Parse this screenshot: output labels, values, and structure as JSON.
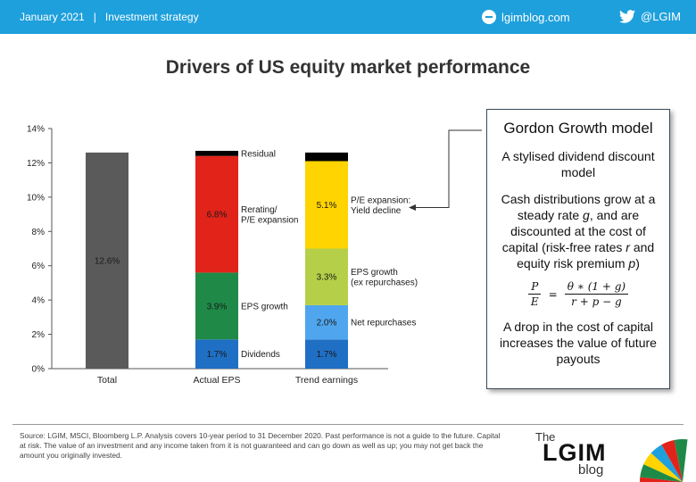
{
  "header": {
    "date": "January 2021",
    "separator": "|",
    "section": "Investment strategy",
    "site": "lgimblog.com",
    "twitter": "@LGIM",
    "site_icon": "globe-icon",
    "twitter_icon": "twitter-bird-icon",
    "bar_color": "#1ea0dc"
  },
  "chart_title": "Drivers of US equity market performance",
  "chart_data": {
    "type": "bar",
    "stacked": true,
    "categories": [
      "Total",
      "Actual EPS",
      "Trend earnings"
    ],
    "ylim": [
      0,
      14
    ],
    "ytick_step": 2,
    "ytick_format": "percent",
    "grid": false,
    "segments": [
      [
        {
          "value": 12.6,
          "color": "#5a5a5a",
          "inner_label": "12.6%",
          "side_label": ""
        }
      ],
      [
        {
          "value": 1.7,
          "color": "#1f6fc4",
          "inner_label": "1.7%",
          "side_label": "Dividends"
        },
        {
          "value": 3.9,
          "color": "#1f8a48",
          "inner_label": "3.9%",
          "side_label": "EPS growth"
        },
        {
          "value": 6.8,
          "color": "#e2231a",
          "inner_label": "6.8%",
          "side_label": "Rerating/\nP/E expansion"
        },
        {
          "value": 0.3,
          "color": "#000000",
          "inner_label": "",
          "side_label": "Residual"
        }
      ],
      [
        {
          "value": 1.7,
          "color": "#1f6fc4",
          "inner_label": "1.7%",
          "side_label": ""
        },
        {
          "value": 2.0,
          "color": "#4fa6ee",
          "inner_label": "2.0%",
          "side_label": "Net repurchases"
        },
        {
          "value": 3.3,
          "color": "#b5cf48",
          "inner_label": "3.3%",
          "side_label": "EPS growth\n(ex repurchases)"
        },
        {
          "value": 5.1,
          "color": "#ffd400",
          "inner_label": "5.1%",
          "side_label": "P/E expansion:\nYield decline"
        },
        {
          "value": 0.5,
          "color": "#000000",
          "inner_label": "",
          "side_label": ""
        }
      ]
    ]
  },
  "gordon": {
    "title": "Gordon Growth model",
    "subtitle": "A stylised dividend discount model",
    "desc_1": "Cash distributions grow at a steady rate ",
    "desc_g": "g",
    "desc_2": ", and are discounted at the cost of capital (risk-free rates ",
    "desc_r": "r",
    "desc_3": " and equity risk premium ",
    "desc_p": "p",
    "desc_4": ")",
    "formula_lhs_num": "P",
    "formula_lhs_den": "E",
    "formula_eq": "=",
    "formula_rhs_num": "θ ∗ (1 + g)",
    "formula_rhs_den": "r + p − g",
    "footer": "A drop in the cost of capital increases the value of future payouts"
  },
  "source_text": "Source: LGIM, MSCI, Bloomberg L.P. Analysis covers 10-year period to 31 December 2020. Past performance is not a guide to the future. Capital at risk. The value of an investment and any income taken from it is not guaranteed and can go down as well as up; you may not get back the amount you originally invested.",
  "logo": {
    "the": "The",
    "lgim": "LGIM",
    "blog": "blog",
    "umbrella_icon": "umbrella-icon",
    "umbrella_colors": [
      "#e2231a",
      "#1f8a48",
      "#ffd400",
      "#1ea0dc"
    ]
  }
}
